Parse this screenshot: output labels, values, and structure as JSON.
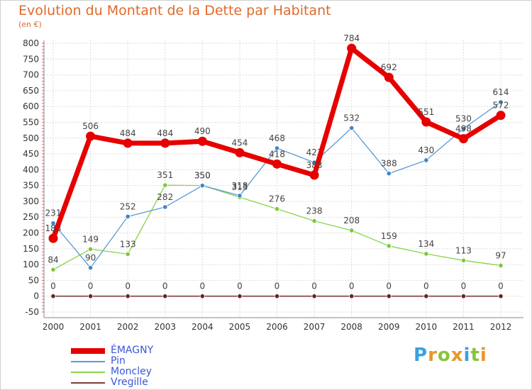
{
  "chart_data": {
    "type": "line",
    "title": "Evolution du Montant de la Dette par Habitant",
    "unit_label": "(en €)",
    "x": [
      "2000",
      "2001",
      "2002",
      "2003",
      "2004",
      "2005",
      "2006",
      "2007",
      "2008",
      "2009",
      "2010",
      "2011",
      "2012"
    ],
    "ylim": [
      -50,
      800
    ],
    "yticks": [
      -50,
      0,
      50,
      100,
      150,
      200,
      250,
      300,
      350,
      400,
      450,
      500,
      550,
      600,
      650,
      700,
      750,
      800
    ],
    "grid": true,
    "legend_position": "bottom-left",
    "series": [
      {
        "name": "ÉMAGNY",
        "color": "#e60000",
        "values": [
          183,
          506,
          484,
          484,
          490,
          454,
          418,
          383,
          784,
          692,
          551,
          498,
          572
        ],
        "labels": [
          "183",
          "506",
          "484",
          "484",
          "490",
          "454",
          "418",
          "383",
          "784",
          "692",
          "551",
          "498",
          "572"
        ]
      },
      {
        "name": "Pin",
        "color": "#5a9bd5",
        "values": [
          231,
          90,
          252,
          282,
          350,
          318,
          468,
          423,
          532,
          388,
          430,
          530,
          614
        ],
        "labels": [
          "231",
          "90",
          "252",
          "282",
          "350",
          "318",
          "468",
          "423",
          "532",
          "388",
          "430",
          "530",
          "614"
        ]
      },
      {
        "name": "Moncley",
        "color": "#88d44a",
        "values": [
          84,
          149,
          133,
          351,
          350,
          313,
          276,
          238,
          208,
          159,
          134,
          113,
          97
        ],
        "labels": [
          "84",
          "149",
          "133",
          "351",
          "350",
          "313",
          "276",
          "238",
          "208",
          "159",
          "134",
          "113",
          "97"
        ]
      },
      {
        "name": "Vregille",
        "color": "#7a3c3c",
        "values": [
          0,
          0,
          0,
          0,
          0,
          0,
          0,
          0,
          0,
          0,
          0,
          0,
          0
        ],
        "labels": [
          "0",
          "0",
          "0",
          "0",
          "0",
          "0",
          "0",
          "0",
          "0",
          "0",
          "0",
          "0",
          "0"
        ]
      }
    ]
  },
  "logo": {
    "text": "Proxiti",
    "letters": [
      "P",
      "r",
      "o",
      "x",
      "i",
      "t",
      "i"
    ],
    "colors": [
      "#3aa0e0",
      "#e8962a",
      "#88c43a",
      "#e8962a",
      "#3aa0e0",
      "#88c43a",
      "#e8962a"
    ]
  }
}
